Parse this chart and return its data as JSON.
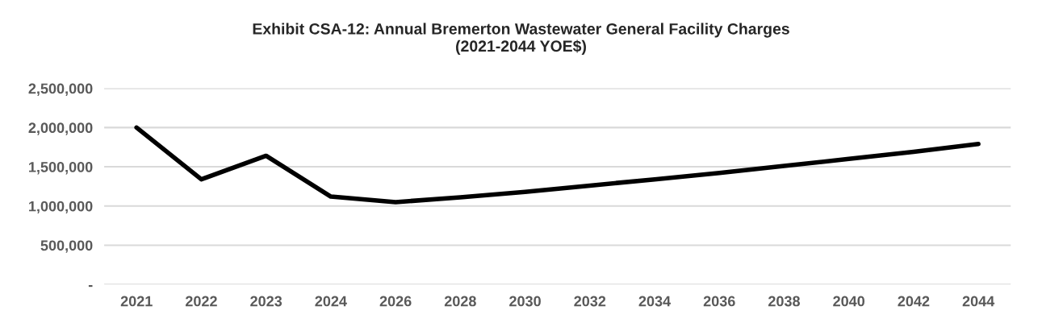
{
  "chart_data": {
    "type": "line",
    "title": "Exhibit CSA-12: Annual Bremerton Wastewater General Facility Charges\n(2021-2044 YOE$)",
    "categories": [
      "2021",
      "2022",
      "2023",
      "2024",
      "2026",
      "2028",
      "2030",
      "2032",
      "2034",
      "2036",
      "2038",
      "2040",
      "2042",
      "2044"
    ],
    "series": [
      {
        "color": "#000000",
        "values": [
          2000000,
          1340000,
          1640000,
          1120000,
          1050000,
          1110000,
          1180000,
          1260000,
          1340000,
          1420000,
          1510000,
          1600000,
          1690000,
          1790000
        ]
      }
    ],
    "ylim": [
      0,
      2500000
    ],
    "yticks": [
      {
        "value": 0,
        "label": "-"
      },
      {
        "value": 500000,
        "label": "500,000"
      },
      {
        "value": 1000000,
        "label": "1,000,000"
      },
      {
        "value": 1500000,
        "label": "1,500,000"
      },
      {
        "value": 2000000,
        "label": "2,000,000"
      },
      {
        "value": 2500000,
        "label": "2,500,000"
      }
    ],
    "grid": "y",
    "legend": false,
    "marker": "none",
    "line_style": "solid"
  }
}
